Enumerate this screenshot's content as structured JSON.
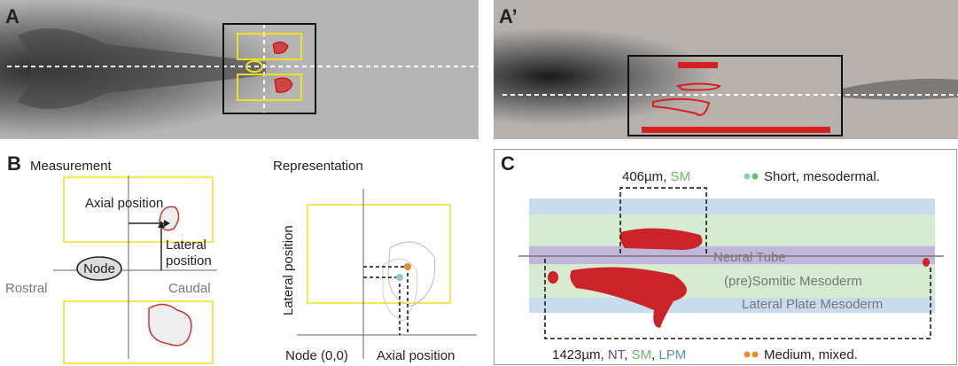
{
  "panels": {
    "a": {
      "label": "A"
    },
    "a_prime": {
      "label": "A’"
    },
    "b": {
      "label": "B",
      "measurement": {
        "title": "Measurement",
        "axial": "Axial position",
        "lateral": [
          "Lateral",
          "position"
        ],
        "node": "Node",
        "rostral": "Rostral",
        "caudal": "Caudal"
      },
      "representation": {
        "title": "Representation",
        "y_axis": "Lateral position",
        "origin": "Node (0,0)",
        "x_axis": "Axial position"
      }
    },
    "c": {
      "label": "C",
      "short_length": [
        "406µm, ",
        "SM"
      ],
      "long_length": [
        "1423µm, ",
        "NT",
        ", ",
        "SM",
        ", ",
        "LPM"
      ],
      "legend": [
        "Short, mesodermal.",
        "Medium, mixed."
      ],
      "layers": [
        "Neural Tube",
        "(pre)Somitic Mesoderm",
        "Lateral Plate Mesoderm"
      ]
    }
  }
}
